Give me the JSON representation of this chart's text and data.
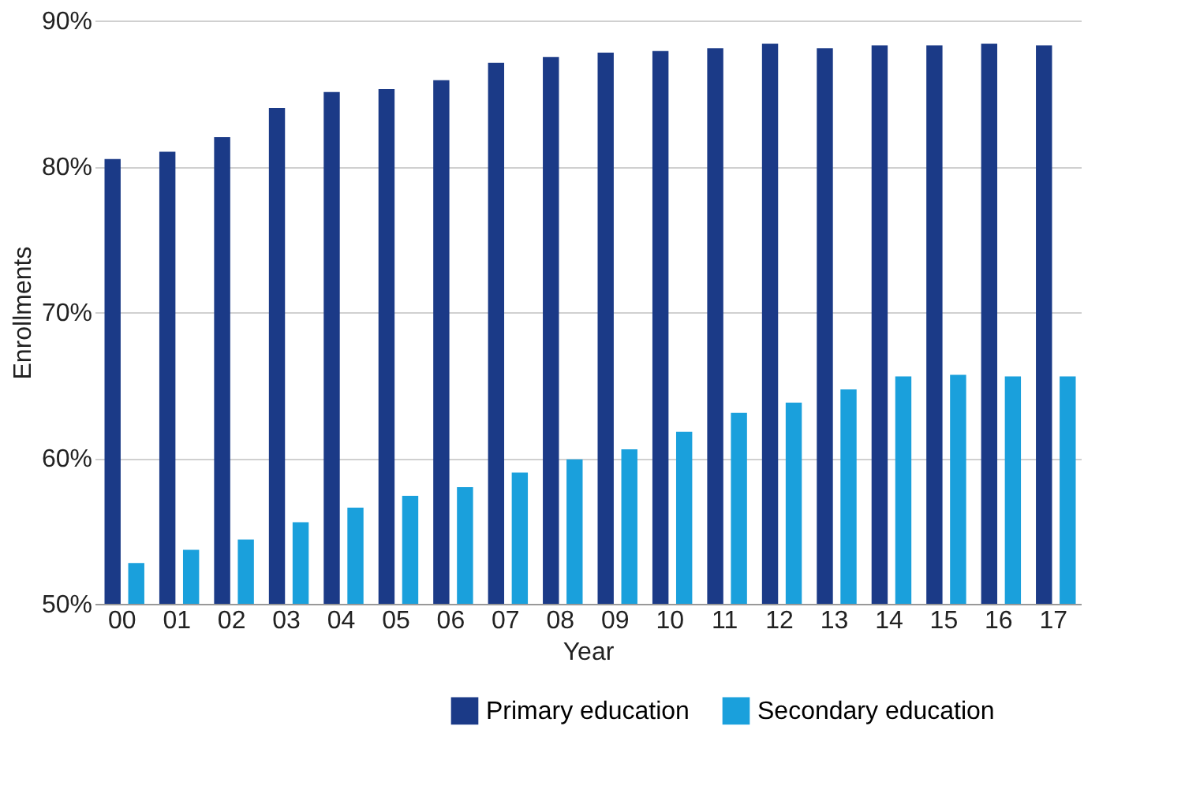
{
  "chart_data": {
    "type": "bar",
    "xlabel": "Year",
    "ylabel": "Enrollments",
    "categories": [
      "00",
      "01",
      "02",
      "03",
      "04",
      "05",
      "06",
      "07",
      "08",
      "09",
      "10",
      "11",
      "12",
      "13",
      "14",
      "15",
      "16",
      "17"
    ],
    "series": [
      {
        "name": "Primary education",
        "color": "#1b3a87",
        "values": [
          80.5,
          81.0,
          82.0,
          84.0,
          85.1,
          85.3,
          85.9,
          87.1,
          87.5,
          87.8,
          87.9,
          88.1,
          88.4,
          88.1,
          88.3,
          88.3,
          88.4,
          88.3
        ]
      },
      {
        "name": "Secondary education",
        "color": "#1aa0dc",
        "values": [
          52.8,
          53.7,
          54.4,
          55.6,
          56.6,
          57.4,
          58.0,
          59.0,
          59.9,
          60.6,
          61.8,
          63.1,
          63.8,
          64.7,
          65.6,
          65.7,
          65.6,
          65.6
        ]
      }
    ],
    "ylim": [
      50,
      90
    ],
    "yticks": [
      {
        "value": 50,
        "label": "50%"
      },
      {
        "value": 60,
        "label": "60%"
      },
      {
        "value": 70,
        "label": "70%"
      },
      {
        "value": 80,
        "label": "80%"
      },
      {
        "value": 90,
        "label": "90%"
      }
    ],
    "grid": "y",
    "legend": "bottom right"
  }
}
